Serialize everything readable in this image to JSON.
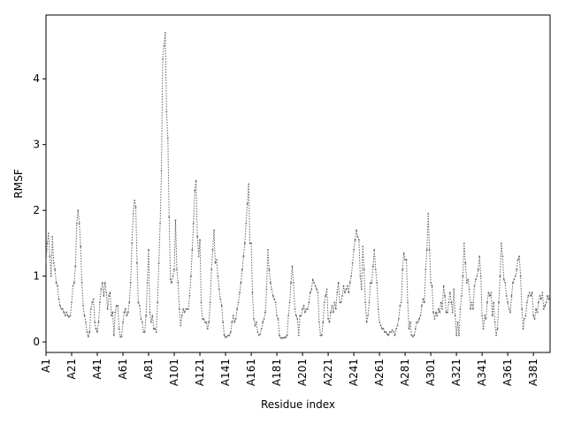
{
  "chart_data": {
    "type": "line",
    "xlabel": "Residue index",
    "ylabel": "RMSF",
    "color": "#666666",
    "ylim": [
      -0.16,
      4.97
    ],
    "yticks": [
      0,
      1,
      2,
      3,
      4
    ],
    "categories": [
      "A1",
      null,
      null,
      null,
      null,
      null,
      null,
      null,
      null,
      null,
      null,
      null,
      null,
      null,
      null,
      null,
      null,
      null,
      null,
      null,
      "A21",
      null,
      null,
      null,
      null,
      null,
      null,
      null,
      null,
      null,
      null,
      null,
      null,
      null,
      null,
      null,
      null,
      null,
      null,
      null,
      "A41",
      null,
      null,
      null,
      null,
      null,
      null,
      null,
      null,
      null,
      null,
      null,
      null,
      null,
      null,
      null,
      null,
      null,
      null,
      null,
      "A61",
      null,
      null,
      null,
      null,
      null,
      null,
      null,
      null,
      null,
      null,
      null,
      null,
      null,
      null,
      null,
      null,
      null,
      null,
      null,
      "A81",
      null,
      null,
      null,
      null,
      null,
      null,
      null,
      null,
      null,
      null,
      null,
      null,
      null,
      null,
      null,
      null,
      null,
      null,
      null,
      "A101",
      null,
      null,
      null,
      null,
      null,
      null,
      null,
      null,
      null,
      null,
      null,
      null,
      null,
      null,
      null,
      null,
      null,
      null,
      null,
      "A121",
      null,
      null,
      null,
      null,
      null,
      null,
      null,
      null,
      null,
      null,
      null,
      null,
      null,
      null,
      null,
      null,
      null,
      null,
      null,
      "A141",
      null,
      null,
      null,
      null,
      null,
      null,
      null,
      null,
      null,
      null,
      null,
      null,
      null,
      null,
      null,
      null,
      null,
      null,
      null,
      "A161",
      null,
      null,
      null,
      null,
      null,
      null,
      null,
      null,
      null,
      null,
      null,
      null,
      null,
      null,
      null,
      null,
      null,
      null,
      null,
      "A181",
      null,
      null,
      null,
      null,
      null,
      null,
      null,
      null,
      null,
      null,
      null,
      null,
      null,
      null,
      null,
      null,
      null,
      null,
      null,
      "A201",
      null,
      null,
      null,
      null,
      null,
      null,
      null,
      null,
      null,
      null,
      null,
      null,
      null,
      null,
      null,
      null,
      null,
      null,
      null,
      "A221",
      null,
      null,
      null,
      null,
      null,
      null,
      null,
      null,
      null,
      null,
      null,
      null,
      null,
      null,
      null,
      null,
      null,
      null,
      null,
      "A241",
      null,
      null,
      null,
      null,
      null,
      null,
      null,
      null,
      null,
      null,
      null,
      null,
      null,
      null,
      null,
      null,
      null,
      null,
      null,
      "A261",
      null,
      null,
      null,
      null,
      null,
      null,
      null,
      null,
      null,
      null,
      null,
      null,
      null,
      null,
      null,
      null,
      null,
      null,
      null,
      "A281",
      null,
      null,
      null,
      null,
      null,
      null,
      null,
      null,
      null,
      null,
      null,
      null,
      null,
      null,
      null,
      null,
      null,
      null,
      null,
      "A301",
      null,
      null,
      null,
      null,
      null,
      null,
      null,
      null,
      null,
      null,
      null,
      null,
      null,
      null,
      null,
      null,
      null,
      null,
      null,
      "A321",
      null,
      null,
      null,
      null,
      null,
      null,
      null,
      null,
      null,
      null,
      null,
      null,
      null,
      null,
      null,
      null,
      null,
      null,
      null,
      "A341",
      null,
      null,
      null,
      null,
      null,
      null,
      null,
      null,
      null,
      null,
      null,
      null,
      null,
      null,
      null,
      null,
      null,
      null,
      null,
      "A361",
      null,
      null,
      null,
      null,
      null,
      null,
      null,
      null,
      null,
      null,
      null,
      null,
      null,
      null,
      null,
      null,
      null,
      null,
      null,
      "A381",
      null,
      null,
      null,
      null,
      null,
      null,
      null,
      null,
      null,
      null,
      null,
      null,
      null
    ],
    "values": [
      1.2,
      1.5,
      1.65,
      1.3,
      1.0,
      1.6,
      1.2,
      1.1,
      0.9,
      0.85,
      0.65,
      0.55,
      0.5,
      0.5,
      0.45,
      0.4,
      0.45,
      0.4,
      0.38,
      0.4,
      0.6,
      0.85,
      0.9,
      1.15,
      1.8,
      2.0,
      1.8,
      1.45,
      0.9,
      0.55,
      0.4,
      0.3,
      0.15,
      0.08,
      0.15,
      0.5,
      0.6,
      0.65,
      0.3,
      0.2,
      0.15,
      0.3,
      0.6,
      0.8,
      0.9,
      0.7,
      0.9,
      0.75,
      0.5,
      0.7,
      0.75,
      0.4,
      0.45,
      0.1,
      0.45,
      0.55,
      0.55,
      0.2,
      0.08,
      0.08,
      0.3,
      0.45,
      0.5,
      0.4,
      0.45,
      0.6,
      0.9,
      1.5,
      1.95,
      2.15,
      2.05,
      1.2,
      0.6,
      0.55,
      0.35,
      0.3,
      0.15,
      0.15,
      0.4,
      0.9,
      1.4,
      0.45,
      0.3,
      0.4,
      0.2,
      0.2,
      0.15,
      0.6,
      1.2,
      1.8,
      2.6,
      4.3,
      4.5,
      4.7,
      3.5,
      3.1,
      1.9,
      0.95,
      0.9,
      1.0,
      1.1,
      1.85,
      1.1,
      0.9,
      0.5,
      0.25,
      0.4,
      0.5,
      0.45,
      0.5,
      0.5,
      0.5,
      0.7,
      1.0,
      1.4,
      1.8,
      2.3,
      2.45,
      1.6,
      1.3,
      1.55,
      0.6,
      0.35,
      0.35,
      0.3,
      0.3,
      0.2,
      0.3,
      0.6,
      1.1,
      1.4,
      1.7,
      1.2,
      1.25,
      1.0,
      0.8,
      0.65,
      0.55,
      0.3,
      0.1,
      0.07,
      0.08,
      0.1,
      0.1,
      0.15,
      0.3,
      0.4,
      0.3,
      0.35,
      0.5,
      0.6,
      0.75,
      0.9,
      1.1,
      1.3,
      1.5,
      1.8,
      2.1,
      2.4,
      1.5,
      1.5,
      0.75,
      0.35,
      0.25,
      0.3,
      0.15,
      0.1,
      0.12,
      0.2,
      0.3,
      0.35,
      0.45,
      0.8,
      1.4,
      1.1,
      0.9,
      0.8,
      0.7,
      0.65,
      0.6,
      0.4,
      0.35,
      0.1,
      0.06,
      0.06,
      0.06,
      0.07,
      0.07,
      0.1,
      0.4,
      0.6,
      0.9,
      1.15,
      0.9,
      0.5,
      0.4,
      0.35,
      0.1,
      0.4,
      0.4,
      0.5,
      0.55,
      0.45,
      0.5,
      0.5,
      0.6,
      0.75,
      0.8,
      0.95,
      0.9,
      0.85,
      0.8,
      0.75,
      0.3,
      0.1,
      0.1,
      0.3,
      0.6,
      0.7,
      0.8,
      0.35,
      0.3,
      0.45,
      0.55,
      0.45,
      0.6,
      0.5,
      0.75,
      0.9,
      0.6,
      0.6,
      0.7,
      0.85,
      0.75,
      0.8,
      0.85,
      0.75,
      0.9,
      1.0,
      1.2,
      1.4,
      1.55,
      1.7,
      1.6,
      1.55,
      1.0,
      0.8,
      1.45,
      1.1,
      0.6,
      0.3,
      0.4,
      0.6,
      0.9,
      0.9,
      1.15,
      1.4,
      1.1,
      0.9,
      0.5,
      0.3,
      0.25,
      0.2,
      0.2,
      0.15,
      0.15,
      0.12,
      0.1,
      0.15,
      0.15,
      0.18,
      0.15,
      0.1,
      0.2,
      0.25,
      0.35,
      0.55,
      0.6,
      1.1,
      1.35,
      1.25,
      1.25,
      0.6,
      0.2,
      0.3,
      0.1,
      0.08,
      0.1,
      0.2,
      0.3,
      0.3,
      0.35,
      0.4,
      0.55,
      0.65,
      0.6,
      1.1,
      1.4,
      1.95,
      1.4,
      0.9,
      0.85,
      0.45,
      0.35,
      0.45,
      0.4,
      0.5,
      0.45,
      0.6,
      0.5,
      0.85,
      0.7,
      0.45,
      0.45,
      0.6,
      0.75,
      0.6,
      0.45,
      0.8,
      0.4,
      0.1,
      0.3,
      0.1,
      0.5,
      0.7,
      1.0,
      1.5,
      1.2,
      0.9,
      0.95,
      0.8,
      0.5,
      0.6,
      0.5,
      0.85,
      0.95,
      1.0,
      1.1,
      1.3,
      1.0,
      0.4,
      0.2,
      0.4,
      0.35,
      0.6,
      0.75,
      0.7,
      0.75,
      0.4,
      0.6,
      0.3,
      0.1,
      0.2,
      0.6,
      1.0,
      1.5,
      1.3,
      0.95,
      0.9,
      0.7,
      0.6,
      0.5,
      0.45,
      0.7,
      0.9,
      0.95,
      1.0,
      1.1,
      1.25,
      1.3,
      1.0,
      0.5,
      0.2,
      0.35,
      0.4,
      0.6,
      0.7,
      0.75,
      0.7,
      0.75,
      0.4,
      0.35,
      0.5,
      0.45,
      0.6,
      0.7,
      0.65,
      0.75,
      0.5,
      0.55,
      0.6,
      0.7,
      0.65,
      0.75
    ]
  }
}
